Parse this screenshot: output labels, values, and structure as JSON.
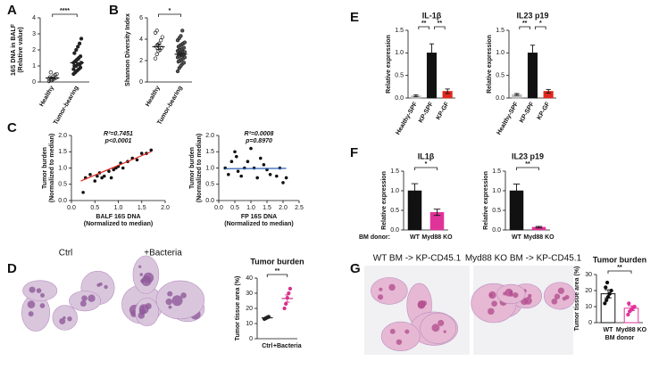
{
  "panel_labels": [
    "A",
    "B",
    "C",
    "D",
    "E",
    "F",
    "G"
  ],
  "histology": [
    {
      "caption": "Ctrl"
    },
    {
      "caption": "+Bacteria"
    },
    {
      "caption": "WT BM -> KP-CD45.1"
    },
    {
      "caption": "Myd88 KO BM -> KP-CD45.1"
    }
  ],
  "chart_data": [
    {
      "type": "dot",
      "ylabel": [
        "16S DNA in BALF",
        "(Relative value)"
      ],
      "categories": [
        "Healthy",
        "Tumor-bearing"
      ],
      "rotate_xlabels": true,
      "points": [
        [
          0.05,
          0.1,
          0.15,
          0.2,
          0.25,
          0.3,
          0.1,
          0.35,
          0.45,
          0.5,
          0.2,
          0.6
        ],
        [
          0.5,
          0.6,
          0.7,
          0.8,
          0.9,
          1.0,
          1.0,
          1.1,
          1.1,
          1.2,
          1.2,
          1.3,
          1.4,
          1.5,
          1.6,
          1.8,
          2.0,
          2.2,
          2.4,
          2.7,
          0.8,
          1.0
        ]
      ],
      "means": [
        0.25,
        1.2
      ],
      "errors": [
        0.05,
        0.15
      ],
      "marker_fill": [
        "none",
        "#222"
      ],
      "colors": [
        "#222",
        "#222"
      ],
      "ylim": [
        0,
        4
      ],
      "yticks": [
        0,
        1,
        2,
        3,
        4
      ],
      "significance": [
        "****"
      ]
    },
    {
      "type": "dot",
      "ylabel": [
        "Shannon Diversity Index"
      ],
      "categories": [
        "Healthy",
        "Tumor-bearing"
      ],
      "rotate_xlabels": true,
      "points": [
        [
          2.2,
          2.6,
          2.9,
          3.0,
          3.2,
          3.3,
          3.5,
          3.6,
          3.9,
          4.2,
          4.6,
          4.8
        ],
        [
          1.0,
          1.3,
          1.5,
          1.7,
          1.8,
          1.9,
          2.0,
          2.1,
          2.2,
          2.3,
          2.3,
          2.4,
          2.5,
          2.5,
          2.6,
          2.6,
          2.7,
          2.7,
          2.8,
          2.8,
          2.9,
          3.0,
          3.0,
          3.1,
          3.2,
          3.3,
          3.4,
          3.5,
          3.6,
          3.7,
          3.9,
          4.1,
          4.3,
          4.8
        ]
      ],
      "means": [
        3.3,
        2.6
      ],
      "errors": [
        0.25,
        0.12
      ],
      "marker_fill": [
        "none",
        "#555"
      ],
      "colors": [
        "#222",
        "#222"
      ],
      "ylim": [
        0,
        6
      ],
      "yticks": [
        0,
        2,
        4,
        6
      ],
      "significance": [
        "*"
      ]
    },
    {
      "type": "scatter",
      "xlabel": [
        "BALF 16S DNA",
        "(Normalized to median)"
      ],
      "ylabel": [
        "Tumor burden",
        "(Normalized to median)"
      ],
      "annotations": [
        "R²=0.7451",
        "p<0.0001"
      ],
      "x": [
        0.25,
        0.3,
        0.4,
        0.5,
        0.55,
        0.6,
        0.65,
        0.7,
        0.8,
        0.85,
        0.9,
        0.95,
        1.0,
        1.05,
        1.1,
        1.2,
        1.3,
        1.4,
        1.5,
        1.6,
        1.7
      ],
      "y": [
        0.25,
        0.7,
        0.8,
        0.6,
        0.75,
        0.85,
        0.7,
        0.75,
        0.9,
        0.7,
        0.95,
        1.0,
        1.05,
        1.15,
        1.0,
        1.2,
        1.3,
        1.25,
        1.45,
        1.45,
        1.55
      ],
      "fit_x": [
        0.2,
        1.7
      ],
      "fit_y": [
        0.6,
        1.5
      ],
      "fit_color": "#e0281e",
      "xlim": [
        0,
        2
      ],
      "xticks": [
        {
          "value": 0,
          "label": "0.0"
        },
        0.5,
        {
          "value": 1,
          "label": "1.0"
        },
        1.5,
        {
          "value": 2,
          "label": "2.0"
        }
      ],
      "ylim": [
        0,
        2
      ],
      "yticks": [
        {
          "value": 0,
          "label": "0.0"
        },
        0.5,
        {
          "value": 1,
          "label": "1.0"
        },
        1.5,
        {
          "value": 2,
          "label": "2.0"
        }
      ]
    },
    {
      "type": "scatter",
      "xlabel": [
        "FP 16S DNA",
        "(Normalized to median)"
      ],
      "ylabel": [
        "Tumor burden",
        "(Normalized to median)"
      ],
      "annotations": [
        "R²=0.0008",
        "p=0.8970"
      ],
      "x": [
        0.2,
        0.3,
        0.4,
        0.5,
        0.55,
        0.6,
        0.7,
        0.8,
        0.9,
        1.0,
        1.1,
        1.2,
        1.3,
        1.4,
        1.5,
        1.6,
        1.8,
        1.9,
        2.0,
        2.1
      ],
      "y": [
        1.0,
        0.8,
        1.2,
        1.5,
        1.35,
        0.9,
        0.75,
        1.0,
        1.2,
        1.6,
        1.0,
        0.7,
        1.3,
        1.1,
        0.95,
        0.8,
        0.75,
        1.0,
        0.55,
        0.7
      ],
      "fit_x": [
        0.2,
        2.1
      ],
      "fit_y": [
        0.98,
        0.99
      ],
      "fit_color": "#2b5fb4",
      "xlim": [
        0,
        2.5
      ],
      "xticks": [
        {
          "value": 0,
          "label": "0.0"
        },
        0.5,
        {
          "value": 1,
          "label": "1.0"
        },
        1.5,
        {
          "value": 2,
          "label": "2.0"
        },
        2.5
      ],
      "ylim": [
        0,
        2
      ],
      "yticks": [
        {
          "value": 0,
          "label": "0.0"
        },
        0.5,
        {
          "value": 1,
          "label": "1.0"
        },
        1.5,
        {
          "value": 2,
          "label": "2.0"
        }
      ]
    },
    {
      "type": "dot",
      "title": "Tumor burden",
      "ylabel": [
        "Tumor tissue area (%)"
      ],
      "categories": [
        "Ctrl",
        "+Bacteria"
      ],
      "points": [
        [
          13,
          13.5,
          14,
          14.5
        ],
        [
          20,
          23,
          27,
          30,
          33
        ]
      ],
      "means": [
        13.8,
        26.5
      ],
      "errors": [
        0.4,
        2.4
      ],
      "marker_fill": [
        "#222",
        "#d6338a"
      ],
      "colors": [
        "#222",
        "#d6338a"
      ],
      "ylim": [
        0,
        40
      ],
      "yticks": [
        0,
        10,
        20,
        30,
        40
      ],
      "significance": [
        "**"
      ]
    },
    {
      "type": "bar",
      "title": "IL-1β",
      "ylabel": [
        "Relative expression"
      ],
      "categories": [
        "Healthy-SPF",
        "KP-SPF",
        "KP-GF"
      ],
      "rotate_xlabels": true,
      "values": [
        0.05,
        1.0,
        0.15
      ],
      "errors": [
        0.02,
        0.2,
        0.05
      ],
      "colors": [
        "#bbbbbb",
        "#111111",
        "#e0281e"
      ],
      "ylim": [
        0,
        1.5
      ],
      "yticks": [
        {
          "value": 0,
          "label": "0.0"
        },
        0.5,
        {
          "value": 1,
          "label": "1.0"
        },
        1.5
      ],
      "significance": [
        "**",
        "**"
      ]
    },
    {
      "type": "bar",
      "title": "IL23 p19",
      "ylabel": [
        "Relative expression"
      ],
      "categories": [
        "Healthy-SPF",
        "KP-SPF",
        "KP-GF"
      ],
      "rotate_xlabels": true,
      "values": [
        0.08,
        1.0,
        0.15
      ],
      "errors": [
        0.02,
        0.17,
        0.04
      ],
      "colors": [
        "#bbbbbb",
        "#111111",
        "#e0281e"
      ],
      "ylim": [
        0,
        1.5
      ],
      "yticks": [
        {
          "value": 0,
          "label": "0.0"
        },
        0.5,
        {
          "value": 1,
          "label": "1.0"
        },
        1.5
      ],
      "significance": [
        "**",
        "*"
      ]
    },
    {
      "type": "bar",
      "title": "IL1β",
      "ylabel": [
        "Relative expression"
      ],
      "categories": [
        "WT",
        "Myd88 KO"
      ],
      "group_label": "BM donor:",
      "values": [
        1.0,
        0.45
      ],
      "errors": [
        0.18,
        0.08
      ],
      "colors": [
        "#111111",
        "#e0339a"
      ],
      "ylim": [
        0,
        1.5
      ],
      "yticks": [
        {
          "value": 0,
          "label": "0.0"
        },
        0.5,
        {
          "value": 1,
          "label": "1.0"
        },
        1.5
      ],
      "significance": [
        "*"
      ]
    },
    {
      "type": "bar",
      "title": "IL23 p19",
      "ylabel": [
        "Relative expression"
      ],
      "categories": [
        "WT",
        "Myd88 KO"
      ],
      "values": [
        1.0,
        0.07
      ],
      "errors": [
        0.17,
        0.02
      ],
      "colors": [
        "#111111",
        "#e0339a"
      ],
      "ylim": [
        0,
        1.5
      ],
      "yticks": [
        {
          "value": 0,
          "label": "0.0"
        },
        0.5,
        {
          "value": 1,
          "label": "1.0"
        },
        1.5
      ],
      "significance": [
        "**"
      ]
    },
    {
      "type": "bar",
      "title": "Tumor burden",
      "ylabel": [
        "Tumor tissue area (%)"
      ],
      "categories": [
        "WT",
        "Myd88 KO"
      ],
      "xlabel": [
        "BM donor"
      ],
      "values": [
        18,
        9
      ],
      "errors": [
        2.5,
        1.5
      ],
      "colors": [
        "#111111",
        "#e0339a"
      ],
      "hollow": true,
      "points": [
        [
          12,
          14,
          16,
          18,
          20,
          22,
          25
        ],
        [
          5,
          7,
          8,
          9,
          10,
          12
        ]
      ],
      "ylim": [
        0,
        30
      ],
      "yticks": [
        0,
        10,
        20,
        30
      ],
      "significance": [
        "**"
      ]
    }
  ]
}
